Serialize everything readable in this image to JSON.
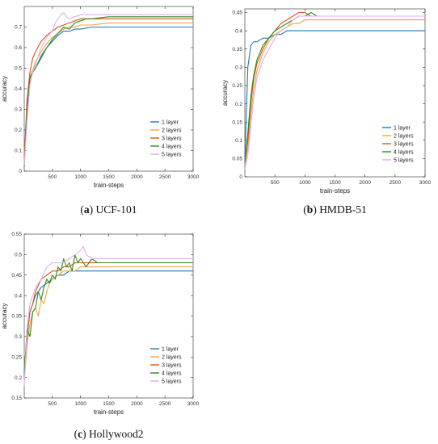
{
  "colors": {
    "1 layer": "#1f77b4",
    "2 layers": "#e8a93c",
    "3 layers": "#d9541e",
    "4 layers": "#2e8b1f",
    "5 layers": "#e1aef0"
  },
  "chart_data": [
    {
      "type": "line",
      "caption_letter": "a",
      "caption_text": "UCF-101",
      "xlabel": "train-steps",
      "ylabel": "accuracy",
      "xlim": [
        0,
        3000
      ],
      "ylim": [
        0,
        0.8
      ],
      "xticks": [
        500,
        1000,
        1500,
        2000,
        2500,
        3000
      ],
      "yticks": [
        0,
        0.1,
        0.2,
        0.3,
        0.4,
        0.5,
        0.6,
        0.7
      ],
      "ytick_labels": [
        "0",
        "0.1",
        "0.2",
        "0.3",
        "0.4",
        "0.5",
        "0.6",
        "0.7"
      ],
      "legend": "lower-right",
      "series": [
        {
          "name": "1 layer",
          "x": [
            0,
            50,
            100,
            150,
            200,
            300,
            400,
            500,
            600,
            700,
            800,
            900,
            1000,
            1200,
            1500,
            2000,
            2500,
            3000
          ],
          "y": [
            0.05,
            0.3,
            0.45,
            0.48,
            0.5,
            0.55,
            0.6,
            0.63,
            0.66,
            0.68,
            0.68,
            0.69,
            0.69,
            0.7,
            0.7,
            0.7,
            0.7,
            0.7
          ]
        },
        {
          "name": "2 layers",
          "x": [
            0,
            50,
            100,
            150,
            200,
            300,
            400,
            500,
            600,
            700,
            800,
            900,
            1000,
            1200,
            1500,
            2000,
            2500,
            3000
          ],
          "y": [
            0.04,
            0.3,
            0.46,
            0.49,
            0.53,
            0.58,
            0.62,
            0.65,
            0.67,
            0.69,
            0.7,
            0.7,
            0.71,
            0.71,
            0.72,
            0.72,
            0.72,
            0.72
          ]
        },
        {
          "name": "3 layers",
          "x": [
            0,
            50,
            100,
            150,
            200,
            300,
            400,
            500,
            600,
            700,
            800,
            900,
            1000,
            1200,
            1500,
            2000,
            2500,
            3000
          ],
          "y": [
            0.06,
            0.35,
            0.48,
            0.55,
            0.58,
            0.63,
            0.66,
            0.68,
            0.7,
            0.71,
            0.72,
            0.73,
            0.74,
            0.74,
            0.74,
            0.74,
            0.74,
            0.74
          ]
        },
        {
          "name": "4 layers",
          "x": [
            0,
            50,
            100,
            150,
            200,
            300,
            400,
            500,
            600,
            700,
            800,
            900,
            1000,
            1100,
            1200,
            1500,
            2000,
            2500,
            3000
          ],
          "y": [
            0.02,
            0.3,
            0.45,
            0.48,
            0.5,
            0.56,
            0.6,
            0.64,
            0.67,
            0.7,
            0.69,
            0.72,
            0.73,
            0.74,
            0.74,
            0.75,
            0.75,
            0.75,
            0.75
          ]
        },
        {
          "name": "5 layers",
          "x": [
            0,
            50,
            100,
            150,
            200,
            300,
            400,
            500,
            550,
            600,
            650,
            700,
            750,
            800,
            900,
            1000,
            1200,
            1500,
            2000,
            2500,
            3000
          ],
          "y": [
            0.03,
            0.25,
            0.42,
            0.48,
            0.52,
            0.6,
            0.65,
            0.68,
            0.72,
            0.74,
            0.76,
            0.77,
            0.75,
            0.74,
            0.75,
            0.76,
            0.76,
            0.76,
            0.76,
            0.76,
            0.76
          ]
        }
      ]
    },
    {
      "type": "line",
      "caption_letter": "b",
      "caption_text": "HMDB-51",
      "xlabel": "train-steps",
      "ylabel": "accuracy",
      "xlim": [
        0,
        3000
      ],
      "ylim": [
        0,
        0.46
      ],
      "xticks": [
        500,
        1000,
        1500,
        2000,
        2500,
        3000
      ],
      "yticks": [
        0,
        0.05,
        0.1,
        0.15,
        0.2,
        0.25,
        0.3,
        0.35,
        0.4,
        0.45
      ],
      "ytick_labels": [
        "0",
        "0.05",
        "0.1",
        "0.15",
        "0.2",
        "0.25",
        "0.3",
        "0.35",
        "0.4",
        "0.45"
      ],
      "legend": "lower-right",
      "series": [
        {
          "name": "1 layer",
          "x": [
            0,
            50,
            100,
            150,
            200,
            300,
            400,
            500,
            600,
            700,
            800,
            900,
            1000,
            1200,
            1500,
            2000,
            2500,
            3000
          ],
          "y": [
            0.05,
            0.3,
            0.36,
            0.37,
            0.37,
            0.38,
            0.38,
            0.39,
            0.39,
            0.4,
            0.4,
            0.4,
            0.4,
            0.4,
            0.4,
            0.4,
            0.4,
            0.4
          ]
        },
        {
          "name": "2 layers",
          "x": [
            0,
            50,
            100,
            150,
            200,
            300,
            400,
            500,
            600,
            700,
            800,
            900,
            1000,
            1200,
            1500,
            2000,
            2500,
            3000
          ],
          "y": [
            0.03,
            0.08,
            0.17,
            0.24,
            0.29,
            0.34,
            0.37,
            0.39,
            0.4,
            0.41,
            0.42,
            0.42,
            0.43,
            0.43,
            0.43,
            0.43,
            0.43,
            0.43
          ]
        },
        {
          "name": "3 layers",
          "x": [
            0,
            50,
            100,
            150,
            200,
            300,
            400,
            500,
            600,
            700,
            800,
            900,
            1000,
            1100,
            1200,
            1500,
            2000,
            2500,
            3000
          ],
          "y": [
            0.04,
            0.1,
            0.2,
            0.27,
            0.31,
            0.35,
            0.38,
            0.4,
            0.42,
            0.43,
            0.44,
            0.45,
            0.45,
            0.44,
            0.44,
            0.44,
            0.44,
            0.44,
            0.44
          ]
        },
        {
          "name": "4 layers",
          "x": [
            0,
            50,
            100,
            150,
            200,
            300,
            400,
            500,
            600,
            700,
            800,
            900,
            1000,
            1100,
            1200,
            1500,
            2000,
            2500,
            3000
          ],
          "y": [
            0.04,
            0.12,
            0.22,
            0.28,
            0.32,
            0.36,
            0.38,
            0.4,
            0.41,
            0.42,
            0.43,
            0.44,
            0.44,
            0.45,
            0.44,
            0.44,
            0.44,
            0.44,
            0.44
          ]
        },
        {
          "name": "5 layers",
          "x": [
            0,
            50,
            100,
            150,
            200,
            300,
            400,
            500,
            600,
            700,
            800,
            900,
            1000,
            1200,
            1500,
            2000,
            2500,
            3000
          ],
          "y": [
            0.02,
            0.06,
            0.14,
            0.22,
            0.27,
            0.32,
            0.35,
            0.38,
            0.4,
            0.41,
            0.43,
            0.44,
            0.44,
            0.44,
            0.44,
            0.44,
            0.44,
            0.44
          ]
        }
      ]
    },
    {
      "type": "line",
      "caption_letter": "c",
      "caption_text": "Hollywood2",
      "xlabel": "train-steps",
      "ylabel": "accuracy",
      "xlim": [
        0,
        3000
      ],
      "ylim": [
        0.15,
        0.55
      ],
      "xticks": [
        500,
        1000,
        1500,
        2000,
        2500,
        3000
      ],
      "yticks": [
        0.15,
        0.2,
        0.25,
        0.3,
        0.35,
        0.4,
        0.45,
        0.5,
        0.55
      ],
      "ytick_labels": [
        "0.15",
        "0.2",
        "0.25",
        "0.3",
        "0.35",
        "0.4",
        "0.45",
        "0.5",
        "0.55"
      ],
      "legend": "lower-right",
      "series": [
        {
          "name": "1 layer",
          "x": [
            0,
            50,
            100,
            150,
            200,
            300,
            400,
            500,
            600,
            700,
            800,
            900,
            1000,
            1200,
            1500,
            2000,
            2500,
            3000
          ],
          "y": [
            0.2,
            0.3,
            0.36,
            0.38,
            0.4,
            0.42,
            0.43,
            0.44,
            0.45,
            0.45,
            0.46,
            0.46,
            0.46,
            0.46,
            0.46,
            0.46,
            0.46,
            0.46
          ]
        },
        {
          "name": "2 layers",
          "x": [
            0,
            50,
            100,
            150,
            200,
            250,
            300,
            350,
            400,
            450,
            500,
            600,
            700,
            800,
            900,
            1000,
            1200,
            1500,
            2000,
            2500,
            3000
          ],
          "y": [
            0.19,
            0.28,
            0.33,
            0.36,
            0.37,
            0.35,
            0.39,
            0.38,
            0.41,
            0.43,
            0.44,
            0.45,
            0.46,
            0.46,
            0.46,
            0.47,
            0.47,
            0.47,
            0.47,
            0.47,
            0.47
          ]
        },
        {
          "name": "3 layers",
          "x": [
            0,
            50,
            100,
            150,
            200,
            300,
            400,
            500,
            600,
            700,
            800,
            900,
            1000,
            1200,
            1500,
            2000,
            2500,
            3000
          ],
          "y": [
            0.21,
            0.3,
            0.36,
            0.38,
            0.41,
            0.44,
            0.45,
            0.46,
            0.46,
            0.47,
            0.47,
            0.48,
            0.48,
            0.48,
            0.48,
            0.48,
            0.48,
            0.48
          ]
        },
        {
          "name": "4 layers",
          "x": [
            0,
            50,
            100,
            150,
            200,
            250,
            300,
            350,
            400,
            450,
            500,
            550,
            600,
            650,
            700,
            750,
            800,
            850,
            900,
            950,
            1000,
            1100,
            1200,
            1300,
            1500,
            2000,
            2500,
            3000
          ],
          "y": [
            0.21,
            0.32,
            0.3,
            0.36,
            0.37,
            0.41,
            0.39,
            0.42,
            0.44,
            0.43,
            0.45,
            0.44,
            0.47,
            0.46,
            0.49,
            0.47,
            0.48,
            0.46,
            0.5,
            0.48,
            0.49,
            0.47,
            0.49,
            0.48,
            0.48,
            0.48,
            0.48,
            0.48
          ]
        },
        {
          "name": "5 layers",
          "x": [
            0,
            50,
            100,
            150,
            200,
            300,
            400,
            500,
            600,
            700,
            800,
            900,
            1000,
            1050,
            1100,
            1200,
            1500,
            2000,
            2500,
            3000
          ],
          "y": [
            0.18,
            0.32,
            0.38,
            0.4,
            0.42,
            0.44,
            0.47,
            0.48,
            0.48,
            0.48,
            0.49,
            0.5,
            0.51,
            0.52,
            0.5,
            0.49,
            0.49,
            0.49,
            0.49,
            0.49
          ]
        }
      ]
    }
  ]
}
